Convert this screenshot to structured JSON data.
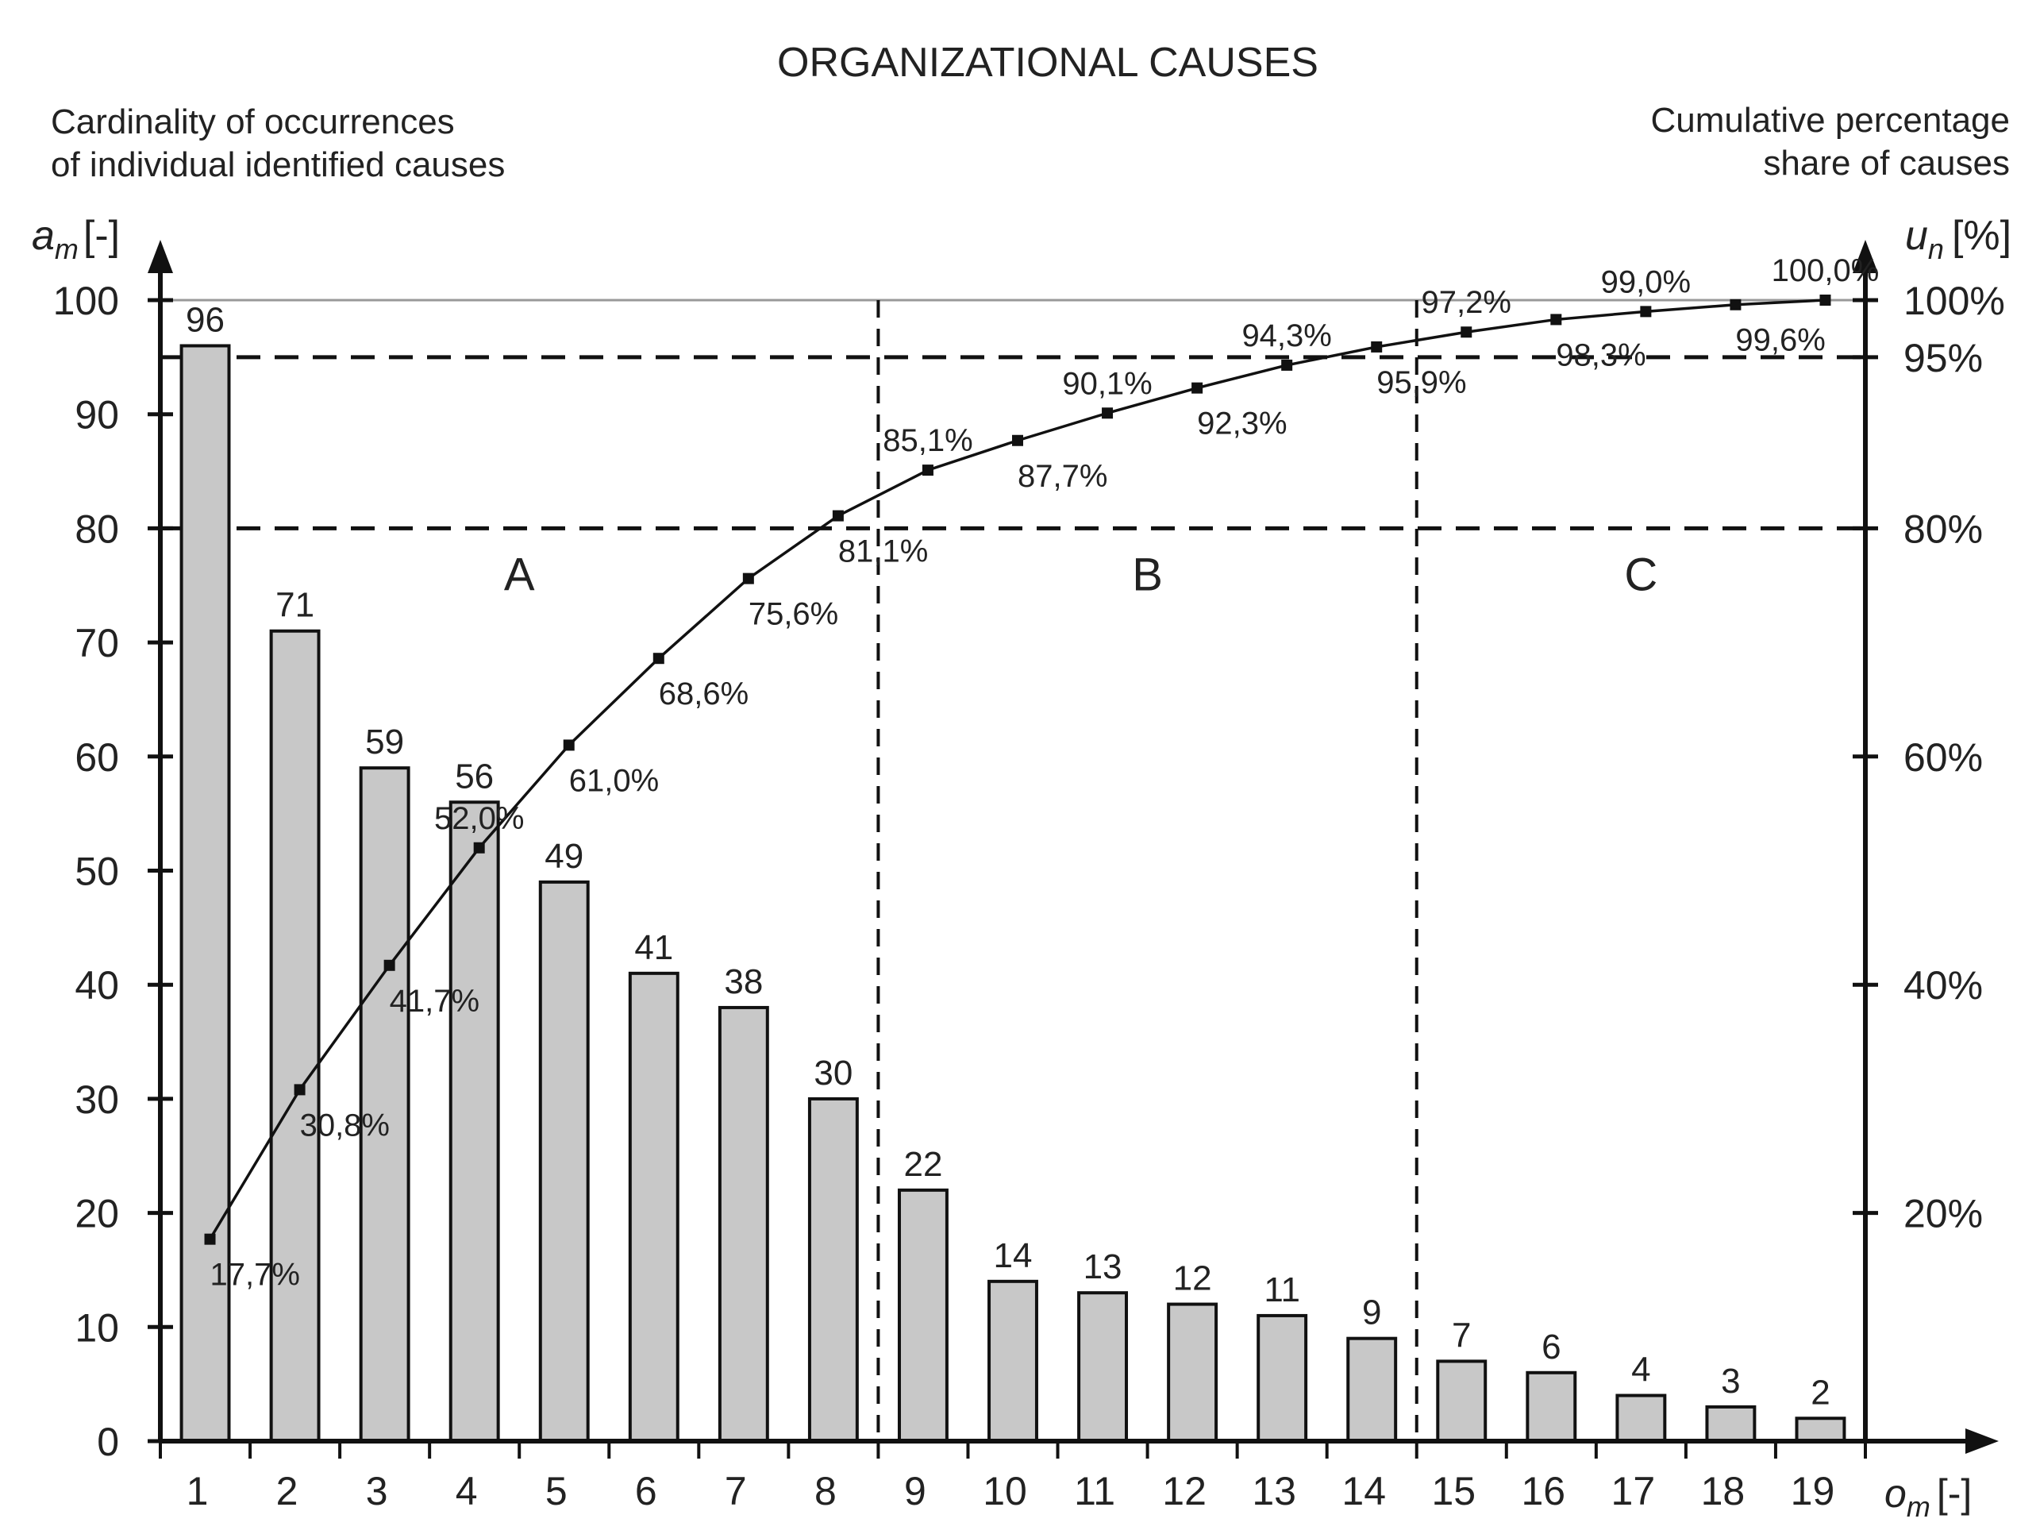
{
  "chart_data": {
    "type": "bar",
    "title": "ORGANIZATIONAL CAUSES",
    "y_left_label_lines": [
      "Cardinality of occurrences",
      "of individual identified causes"
    ],
    "y_right_label_lines": [
      "Cumulative percentage",
      "share of causes"
    ],
    "y_left_axis": {
      "symbol": "a",
      "subscript": "m",
      "unit": "[-]"
    },
    "y_right_axis": {
      "symbol": "u",
      "subscript": "n",
      "unit": "[%]"
    },
    "x_axis": {
      "symbol": "o",
      "subscript": "m",
      "unit": "[-]"
    },
    "ylim": [
      0,
      100
    ],
    "y_ticks": [
      "0",
      "10",
      "20",
      "30",
      "40",
      "50",
      "60",
      "70",
      "80",
      "90",
      "100"
    ],
    "y_right_ticks": [
      {
        "value": 20,
        "label": "20%"
      },
      {
        "value": 40,
        "label": "40%"
      },
      {
        "value": 60,
        "label": "60%"
      },
      {
        "value": 80,
        "label": "80%"
      },
      {
        "value": 95,
        "label": "95%"
      },
      {
        "value": 100,
        "label": "100%"
      }
    ],
    "categories": [
      "1",
      "2",
      "3",
      "4",
      "5",
      "6",
      "7",
      "8",
      "9",
      "10",
      "11",
      "12",
      "13",
      "14",
      "15",
      "16",
      "17",
      "18",
      "19"
    ],
    "values": [
      96,
      71,
      59,
      56,
      49,
      41,
      38,
      30,
      22,
      14,
      13,
      12,
      11,
      9,
      7,
      6,
      4,
      3,
      2
    ],
    "value_labels": [
      "96",
      "71",
      "59",
      "56",
      "49",
      "41",
      "38",
      "30",
      "22",
      "14",
      "13",
      "12",
      "11",
      "9",
      "7",
      "6",
      "4",
      "3",
      "2"
    ],
    "cumulative": [
      17.7,
      30.8,
      41.7,
      52.0,
      61.0,
      68.6,
      75.6,
      81.1,
      85.1,
      87.7,
      90.1,
      92.3,
      94.3,
      95.9,
      97.2,
      98.3,
      99.0,
      99.6,
      100.0
    ],
    "cumulative_labels": [
      "17,7%",
      "30,8%",
      "41,7%",
      "52,0%",
      "61,0%",
      "68,6%",
      "75,6%",
      "81,1%",
      "85,1%",
      "87,7%",
      "90,1%",
      "92,3%",
      "94,3%",
      "95,9%",
      "97,2%",
      "98,3%",
      "99,0%",
      "99,6%",
      "100,0%"
    ],
    "thresholds": [
      80,
      95
    ],
    "zones": [
      {
        "label": "A",
        "from": 1,
        "to": 8
      },
      {
        "label": "B",
        "from": 9,
        "to": 14
      },
      {
        "label": "C",
        "from": 15,
        "to": 19
      }
    ],
    "colors": {
      "bar": "#c8c8c8",
      "line": "#111111",
      "axis": "#111111",
      "grid": "#999999"
    }
  }
}
